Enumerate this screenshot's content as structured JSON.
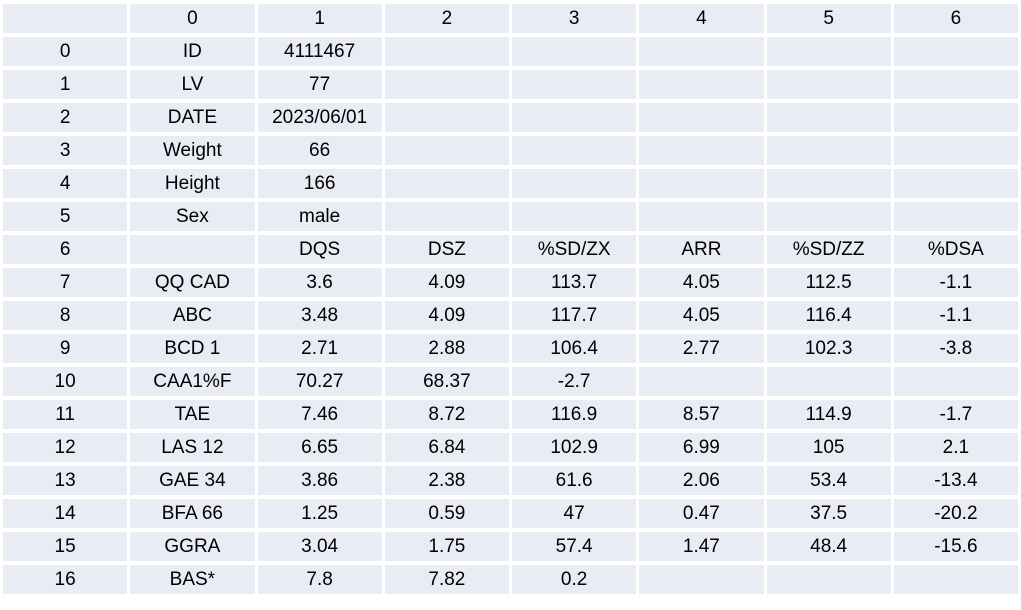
{
  "page": {
    "background": "#ffffff"
  },
  "table": {
    "cell_fill": "#e9ebf5",
    "grid_color": "#ffffff",
    "text_color": "#000000",
    "columns": [
      "",
      "0",
      "1",
      "2",
      "3",
      "4",
      "5",
      "6"
    ],
    "rows": [
      {
        "index": "0",
        "cells": [
          "ID",
          "4111467",
          "",
          "",
          "",
          "",
          ""
        ]
      },
      {
        "index": "1",
        "cells": [
          "LV",
          "77",
          "",
          "",
          "",
          "",
          ""
        ]
      },
      {
        "index": "2",
        "cells": [
          "DATE",
          "2023/06/01",
          "",
          "",
          "",
          "",
          ""
        ]
      },
      {
        "index": "3",
        "cells": [
          "Weight",
          "66",
          "",
          "",
          "",
          "",
          ""
        ]
      },
      {
        "index": "4",
        "cells": [
          "Height",
          "166",
          "",
          "",
          "",
          "",
          ""
        ]
      },
      {
        "index": "5",
        "cells": [
          "Sex",
          "male",
          "",
          "",
          "",
          "",
          ""
        ]
      },
      {
        "index": "6",
        "cells": [
          "",
          "DQS",
          "DSZ",
          "%SD/ZX",
          "ARR",
          "%SD/ZZ",
          "%DSA"
        ]
      },
      {
        "index": "7",
        "cells": [
          "QQ CAD",
          "3.6",
          "4.09",
          "113.7",
          "4.05",
          "112.5",
          "-1.1"
        ]
      },
      {
        "index": "8",
        "cells": [
          "ABC",
          "3.48",
          "4.09",
          "117.7",
          "4.05",
          "116.4",
          "-1.1"
        ]
      },
      {
        "index": "9",
        "cells": [
          "BCD 1",
          "2.71",
          "2.88",
          "106.4",
          "2.77",
          "102.3",
          "-3.8"
        ]
      },
      {
        "index": "10",
        "cells": [
          "CAA1%F",
          "70.27",
          "68.37",
          "-2.7",
          "",
          "",
          ""
        ]
      },
      {
        "index": "11",
        "cells": [
          "TAE",
          "7.46",
          "8.72",
          "116.9",
          "8.57",
          "114.9",
          "-1.7"
        ]
      },
      {
        "index": "12",
        "cells": [
          "LAS 12",
          "6.65",
          "6.84",
          "102.9",
          "6.99",
          "105",
          "2.1"
        ]
      },
      {
        "index": "13",
        "cells": [
          "GAE 34",
          "3.86",
          "2.38",
          "61.6",
          "2.06",
          "53.4",
          "-13.4"
        ]
      },
      {
        "index": "14",
        "cells": [
          "BFA 66",
          "1.25",
          "0.59",
          "47",
          "0.47",
          "37.5",
          "-20.2"
        ]
      },
      {
        "index": "15",
        "cells": [
          "GGRA",
          "3.04",
          "1.75",
          "57.4",
          "1.47",
          "48.4",
          "-15.6"
        ]
      },
      {
        "index": "16",
        "cells": [
          "BAS*",
          "7.8",
          "7.82",
          "0.2",
          "",
          "",
          ""
        ]
      }
    ]
  }
}
